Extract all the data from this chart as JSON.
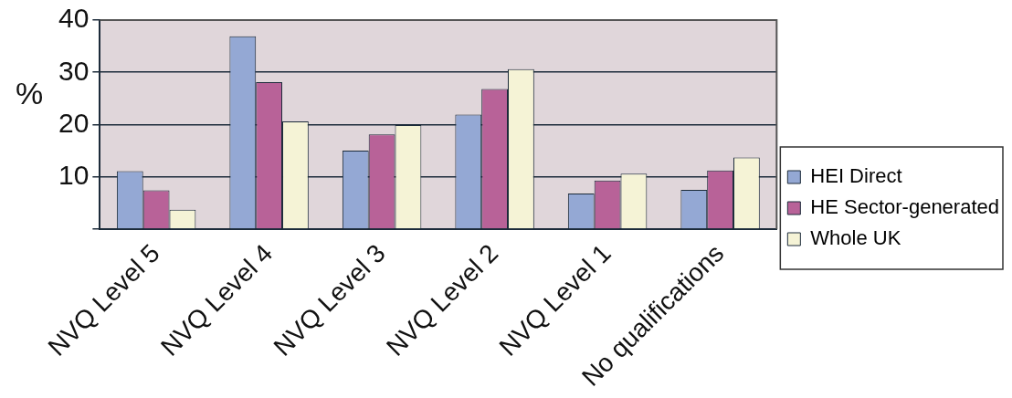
{
  "chart_data": {
    "type": "bar",
    "ylabel": "%",
    "categories": [
      "NVQ Level 5",
      "NVQ Level 4",
      "NVQ Level 3",
      "NVQ Level 2",
      "NVQ Level 1",
      "No qualifications"
    ],
    "series": [
      {
        "name": "HEI Direct",
        "color": "#94a8d4",
        "values": [
          11.1,
          36.9,
          15.0,
          21.9,
          6.8,
          7.5
        ]
      },
      {
        "name": "HE Sector-generated",
        "color": "#b86298",
        "values": [
          7.4,
          28.1,
          18.1,
          26.8,
          9.3,
          11.2
        ]
      },
      {
        "name": "Whole UK",
        "color": "#f5f3d6",
        "values": [
          3.7,
          20.6,
          19.9,
          30.6,
          10.6,
          13.7
        ]
      }
    ],
    "ylim": [
      0,
      40
    ],
    "yticks": [
      {
        "value": 0,
        "label": null
      },
      10,
      20,
      30,
      40
    ],
    "grid": "y",
    "legend": "right"
  }
}
